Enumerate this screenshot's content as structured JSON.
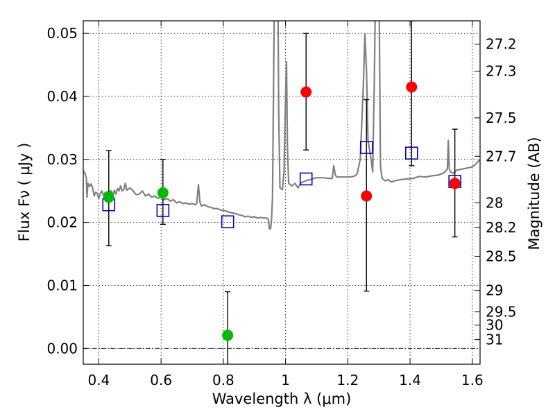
{
  "chart_data": {
    "type": "scatter",
    "xlabel": "Wavelength  λ (μm)",
    "ylabel": "Flux  Fν  ( μJy )",
    "y2label": "Magnitude (AB)",
    "xlim": [
      0.35,
      1.625
    ],
    "ylim": [
      -0.0025,
      0.052
    ],
    "x_ticks": [
      0.4,
      0.6,
      0.8,
      1.0,
      1.2,
      1.4,
      1.6
    ],
    "x_tick_labels": [
      "0.4",
      "0.6",
      "0.8",
      "1",
      "1.2",
      "1.4",
      "1.6"
    ],
    "y_ticks": [
      0.0,
      0.01,
      0.02,
      0.03,
      0.04,
      0.05
    ],
    "y_tick_labels": [
      "0.00",
      "0.01",
      "0.02",
      "0.03",
      "0.04",
      "0.05"
    ],
    "y2_ticks": [
      {
        "label": "27.2",
        "flux": 0.0483
      },
      {
        "label": "27.3",
        "flux": 0.044
      },
      {
        "label": "27.5",
        "flux": 0.0366
      },
      {
        "label": "27.7",
        "flux": 0.0305
      },
      {
        "label": "28",
        "flux": 0.0231
      },
      {
        "label": "28.2",
        "flux": 0.0192
      },
      {
        "label": "28.5",
        "flux": 0.0146
      },
      {
        "label": "29",
        "flux": 0.0092
      },
      {
        "label": "29.5",
        "flux": 0.0058
      },
      {
        "label": "30",
        "flux": 0.0037
      },
      {
        "label": "31",
        "flux": 0.0014
      }
    ],
    "grid": true,
    "zero_line": true,
    "colors": {
      "model": "#808080",
      "observed_optical": "#00bb00",
      "observed_nir": "#ff0000",
      "synthetic": "#0000cc",
      "errorbar": "#000000"
    },
    "model_spectrum": [
      [
        0.35,
        0.0282
      ],
      [
        0.355,
        0.0279
      ],
      [
        0.36,
        0.027
      ],
      [
        0.362,
        0.024
      ],
      [
        0.365,
        0.0262
      ],
      [
        0.37,
        0.0257
      ],
      [
        0.375,
        0.0261
      ],
      [
        0.38,
        0.0255
      ],
      [
        0.385,
        0.0242
      ],
      [
        0.39,
        0.0248
      ],
      [
        0.395,
        0.0246
      ],
      [
        0.4,
        0.0238
      ],
      [
        0.405,
        0.0246
      ],
      [
        0.41,
        0.025
      ],
      [
        0.415,
        0.0243
      ],
      [
        0.42,
        0.0247
      ],
      [
        0.43,
        0.0249
      ],
      [
        0.44,
        0.025
      ],
      [
        0.445,
        0.0243
      ],
      [
        0.45,
        0.0251
      ],
      [
        0.455,
        0.0245
      ],
      [
        0.46,
        0.0254
      ],
      [
        0.465,
        0.025
      ],
      [
        0.47,
        0.0258
      ],
      [
        0.475,
        0.025
      ],
      [
        0.48,
        0.0252
      ],
      [
        0.485,
        0.0262
      ],
      [
        0.49,
        0.0251
      ],
      [
        0.5,
        0.0255
      ],
      [
        0.51,
        0.025
      ],
      [
        0.52,
        0.0244
      ],
      [
        0.53,
        0.0245
      ],
      [
        0.54,
        0.025
      ],
      [
        0.55,
        0.0242
      ],
      [
        0.56,
        0.0245
      ],
      [
        0.57,
        0.024
      ],
      [
        0.58,
        0.0242
      ],
      [
        0.59,
        0.0238
      ],
      [
        0.6,
        0.0241
      ],
      [
        0.61,
        0.0236
      ],
      [
        0.62,
        0.0238
      ],
      [
        0.63,
        0.0234
      ],
      [
        0.64,
        0.0236
      ],
      [
        0.65,
        0.0231
      ],
      [
        0.66,
        0.0233
      ],
      [
        0.67,
        0.023
      ],
      [
        0.68,
        0.0231
      ],
      [
        0.69,
        0.0229
      ],
      [
        0.7,
        0.023
      ],
      [
        0.71,
        0.0228
      ],
      [
        0.715,
        0.0231
      ],
      [
        0.72,
        0.026
      ],
      [
        0.725,
        0.0232
      ],
      [
        0.73,
        0.0226
      ],
      [
        0.74,
        0.0228
      ],
      [
        0.75,
        0.0225
      ],
      [
        0.76,
        0.0224
      ],
      [
        0.77,
        0.0222
      ],
      [
        0.78,
        0.0222
      ],
      [
        0.79,
        0.022
      ],
      [
        0.8,
        0.0219
      ],
      [
        0.81,
        0.0218
      ],
      [
        0.82,
        0.0216
      ],
      [
        0.83,
        0.0215
      ],
      [
        0.84,
        0.0214
      ],
      [
        0.85,
        0.0212
      ],
      [
        0.86,
        0.0211
      ],
      [
        0.87,
        0.0209
      ],
      [
        0.88,
        0.021
      ],
      [
        0.89,
        0.0208
      ],
      [
        0.9,
        0.0209
      ],
      [
        0.91,
        0.0207
      ],
      [
        0.92,
        0.0208
      ],
      [
        0.93,
        0.0207
      ],
      [
        0.94,
        0.0207
      ],
      [
        0.945,
        0.0205
      ],
      [
        0.948,
        0.019
      ],
      [
        0.952,
        0.019
      ],
      [
        0.955,
        0.0205
      ],
      [
        0.958,
        0.024
      ],
      [
        0.962,
        0.045
      ],
      [
        0.965,
        0.06
      ],
      [
        0.975,
        0.06
      ],
      [
        0.978,
        0.038
      ],
      [
        0.982,
        0.0255
      ],
      [
        0.99,
        0.0252
      ],
      [
        0.995,
        0.028
      ],
      [
        1.0,
        0.04
      ],
      [
        1.003,
        0.0455
      ],
      [
        1.006,
        0.032
      ],
      [
        1.01,
        0.0262
      ],
      [
        1.02,
        0.0258
      ],
      [
        1.03,
        0.0262
      ],
      [
        1.04,
        0.0255
      ],
      [
        1.05,
        0.0263
      ],
      [
        1.06,
        0.0265
      ],
      [
        1.07,
        0.0267
      ],
      [
        1.08,
        0.0268
      ],
      [
        1.09,
        0.027
      ],
      [
        1.1,
        0.0271
      ],
      [
        1.12,
        0.0271
      ],
      [
        1.14,
        0.027
      ],
      [
        1.15,
        0.027
      ],
      [
        1.155,
        0.029
      ],
      [
        1.16,
        0.0275
      ],
      [
        1.165,
        0.0272
      ],
      [
        1.18,
        0.0272
      ],
      [
        1.2,
        0.0272
      ],
      [
        1.22,
        0.0273
      ],
      [
        1.23,
        0.0277
      ],
      [
        1.24,
        0.03
      ],
      [
        1.25,
        0.042
      ],
      [
        1.255,
        0.05
      ],
      [
        1.26,
        0.044
      ],
      [
        1.265,
        0.033
      ],
      [
        1.275,
        0.03
      ],
      [
        1.28,
        0.028
      ],
      [
        1.285,
        0.042
      ],
      [
        1.29,
        0.06
      ],
      [
        1.3,
        0.06
      ],
      [
        1.305,
        0.029
      ],
      [
        1.31,
        0.027
      ],
      [
        1.32,
        0.0266
      ],
      [
        1.33,
        0.0268
      ],
      [
        1.34,
        0.0264
      ],
      [
        1.35,
        0.0266
      ],
      [
        1.37,
        0.0268
      ],
      [
        1.39,
        0.0269
      ],
      [
        1.41,
        0.027
      ],
      [
        1.43,
        0.0273
      ],
      [
        1.45,
        0.0272
      ],
      [
        1.47,
        0.0274
      ],
      [
        1.49,
        0.0275
      ],
      [
        1.5,
        0.0277
      ],
      [
        1.51,
        0.0279
      ],
      [
        1.52,
        0.0285
      ],
      [
        1.523,
        0.033
      ],
      [
        1.526,
        0.0285
      ],
      [
        1.53,
        0.028
      ],
      [
        1.54,
        0.0278
      ],
      [
        1.55,
        0.0283
      ],
      [
        1.57,
        0.0285
      ],
      [
        1.59,
        0.0287
      ],
      [
        1.6,
        0.0288
      ],
      [
        1.61,
        0.0292
      ],
      [
        1.625,
        0.03
      ]
    ],
    "observed_points": [
      {
        "x": 0.432,
        "y": 0.024,
        "err_low": 0.0163,
        "err_high": 0.0314,
        "band": "optical"
      },
      {
        "x": 0.606,
        "y": 0.0247,
        "err_low": 0.0197,
        "err_high": 0.03,
        "band": "optical"
      },
      {
        "x": 0.814,
        "y": 0.0021,
        "err_low": -0.0025,
        "err_high": 0.009,
        "band": "optical"
      },
      {
        "x": 1.066,
        "y": 0.0407,
        "err_low": 0.0315,
        "err_high": 0.05,
        "band": "nir"
      },
      {
        "x": 1.26,
        "y": 0.0242,
        "err_low": 0.0091,
        "err_high": 0.0395,
        "band": "nir"
      },
      {
        "x": 1.405,
        "y": 0.0415,
        "err_low": 0.029,
        "err_high": 0.052,
        "band": "nir"
      },
      {
        "x": 1.544,
        "y": 0.0262,
        "err_low": 0.0177,
        "err_high": 0.0348,
        "band": "nir"
      }
    ],
    "synthetic_points": [
      {
        "x": 0.432,
        "y": 0.0228
      },
      {
        "x": 0.606,
        "y": 0.0219
      },
      {
        "x": 0.814,
        "y": 0.0201
      },
      {
        "x": 1.066,
        "y": 0.0269
      },
      {
        "x": 1.26,
        "y": 0.0319
      },
      {
        "x": 1.405,
        "y": 0.031
      },
      {
        "x": 1.544,
        "y": 0.0265
      }
    ]
  }
}
